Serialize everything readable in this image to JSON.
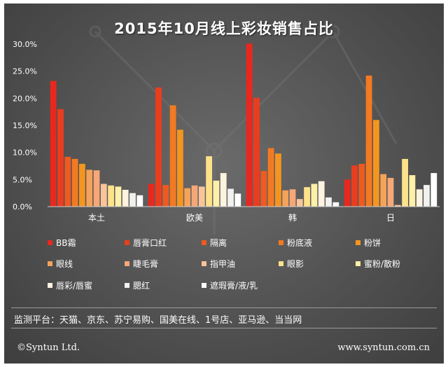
{
  "chart_data": {
    "type": "bar",
    "title": "2015年10月线上彩妆销售占比",
    "categories": [
      "本土",
      "欧美",
      "韩",
      "日"
    ],
    "ylim": [
      0,
      30
    ],
    "y_tick_labels": [
      "0.0%",
      "5.0%",
      "10.0%",
      "15.0%",
      "20.0%",
      "25.0%",
      "30.0%"
    ],
    "grid": false,
    "legend_position": "bottom",
    "series": [
      {
        "name": "BB霜",
        "color": "#e8281e",
        "values": [
          23.2,
          4.2,
          30.1,
          5.0
        ]
      },
      {
        "name": "唇膏口红",
        "color": "#ea3d1e",
        "values": [
          18.0,
          22.0,
          20.1,
          7.6
        ]
      },
      {
        "name": "隔离",
        "color": "#ee5a20",
        "values": [
          9.2,
          4.0,
          6.6,
          7.9
        ]
      },
      {
        "name": "粉底液",
        "color": "#f27a22",
        "values": [
          8.8,
          18.7,
          10.8,
          24.2
        ]
      },
      {
        "name": "粉饼",
        "color": "#f4951f",
        "values": [
          7.9,
          14.2,
          9.8,
          16.0
        ]
      },
      {
        "name": "眼线",
        "color": "#f5a25a",
        "values": [
          6.8,
          3.4,
          3.0,
          6.0
        ]
      },
      {
        "name": "睫毛膏",
        "color": "#f6a777",
        "values": [
          6.7,
          3.9,
          3.2,
          5.3
        ]
      },
      {
        "name": "指甲油",
        "color": "#f9c49a",
        "values": [
          4.2,
          3.7,
          1.4,
          0.3
        ]
      },
      {
        "name": "眼影",
        "color": "#fde28a",
        "values": [
          3.9,
          9.3,
          3.6,
          8.8
        ]
      },
      {
        "name": "蜜粉/散粉",
        "color": "#fdf0a8",
        "values": [
          3.7,
          4.8,
          4.2,
          5.8
        ]
      },
      {
        "name": "唇彩/唇蜜",
        "color": "#fdf3df",
        "values": [
          3.1,
          6.2,
          4.7,
          3.2
        ]
      },
      {
        "name": "腮红",
        "color": "#f1f1ef",
        "values": [
          2.5,
          3.3,
          1.7,
          4.0
        ]
      },
      {
        "name": "遮瑕膏/液/乳",
        "color": "#ffffff",
        "values": [
          2.1,
          2.4,
          0.8,
          6.2
        ]
      }
    ]
  },
  "platform_text": "监测平台：天猫、京东、苏宁易购、国美在线、1号店、亚马逊、当当网",
  "footer": {
    "copyright": "©Syntun Ltd.",
    "website": "www.syntun.com.cn"
  }
}
